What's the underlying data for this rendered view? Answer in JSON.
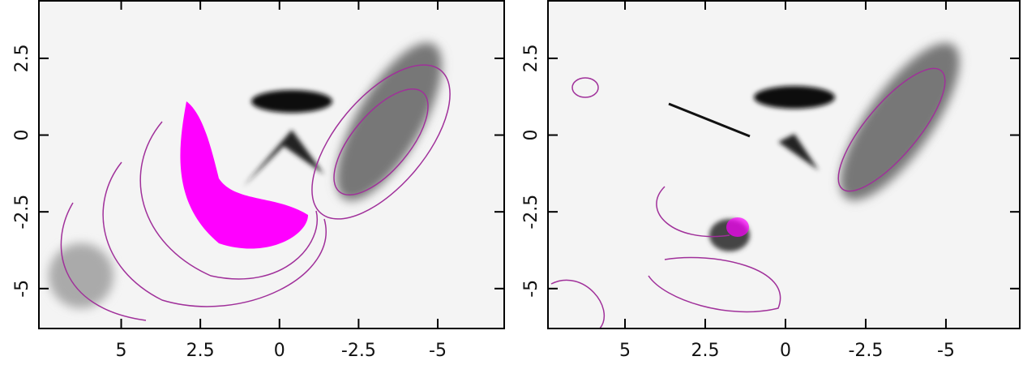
{
  "chart_data": [
    {
      "type": "contour-map",
      "xlim": [
        7.6,
        -7.1
      ],
      "ylim": [
        -6.3,
        4.4
      ],
      "xticks": [
        5,
        2.5,
        0,
        -2.5,
        -5
      ],
      "yticks": [
        2.5,
        0,
        -2.5,
        -5
      ],
      "contour_color": "#a0309a",
      "fill_color": "#ff00ff"
    },
    {
      "type": "contour-map",
      "xlim": [
        7.4,
        -7.3
      ],
      "ylim": [
        -6.3,
        4.4
      ],
      "xticks": [
        5,
        2.5,
        0,
        -2.5,
        -5
      ],
      "yticks": [
        2.5,
        0,
        -2.5,
        -5
      ],
      "contour_color": "#a0309a",
      "fill_color": "#ff00ff"
    }
  ]
}
